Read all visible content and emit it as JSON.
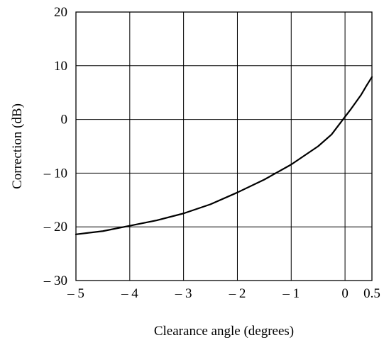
{
  "chart_data": {
    "type": "line",
    "title": "",
    "xlabel": "Clearance angle (degrees)",
    "ylabel": "Correction (dB)",
    "xlim": [
      -5,
      0.5
    ],
    "ylim": [
      -30,
      20
    ],
    "grid": true,
    "x_ticks": [
      {
        "value": -5,
        "label": "– 5"
      },
      {
        "value": -4,
        "label": "– 4"
      },
      {
        "value": -3,
        "label": "– 3"
      },
      {
        "value": -2,
        "label": "– 2"
      },
      {
        "value": -1,
        "label": "– 1"
      },
      {
        "value": 0,
        "label": "0"
      },
      {
        "value": 0.5,
        "label": "0.5"
      }
    ],
    "y_ticks": [
      {
        "value": 20,
        "label": "20"
      },
      {
        "value": 10,
        "label": "10"
      },
      {
        "value": 0,
        "label": "0"
      },
      {
        "value": -10,
        "label": "– 10"
      },
      {
        "value": -20,
        "label": "– 20"
      },
      {
        "value": -30,
        "label": "– 30"
      }
    ],
    "series": [
      {
        "color": "#000000",
        "x": [
          -5,
          -4.5,
          -4,
          -3.5,
          -3,
          -2.5,
          -2,
          -1.5,
          -1,
          -0.5,
          -0.25,
          0,
          0.1,
          0.2,
          0.3,
          0.4,
          0.5
        ],
        "y": [
          -21.4,
          -20.8,
          -19.8,
          -18.8,
          -17.5,
          -15.8,
          -13.6,
          -11.2,
          -8.4,
          -5.0,
          -2.8,
          0.5,
          1.8,
          3.2,
          4.6,
          6.3,
          7.9
        ]
      }
    ]
  }
}
